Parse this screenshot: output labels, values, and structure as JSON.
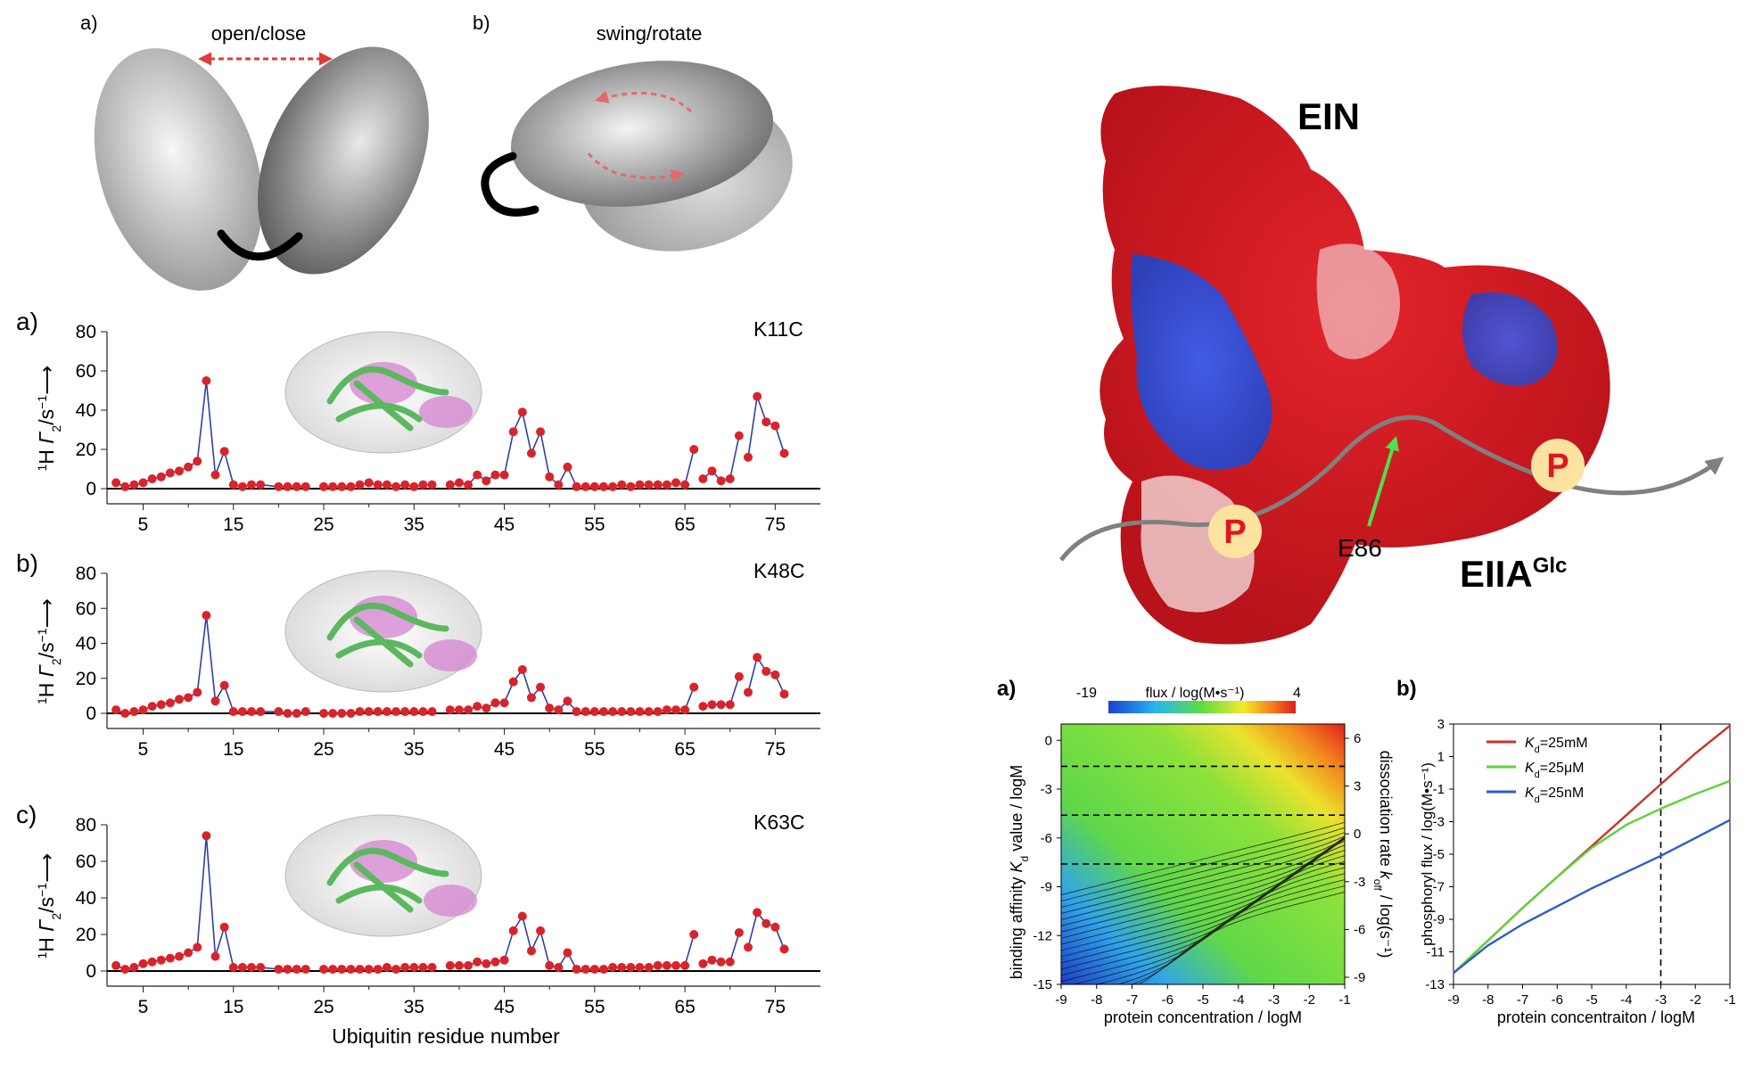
{
  "colors": {
    "marker": "#d9232a",
    "line": "#2f3fa6",
    "red_curve": "#c8332b",
    "green_curve": "#5fd23a",
    "blue_curve": "#2d5bd0",
    "protein_green": "#5bb85f",
    "protein_pink": "#d68ad2",
    "phospho_fill": "#fde3a0",
    "phospho_text": "#e2141c"
  },
  "schematic": {
    "a": {
      "panel_label": "a)",
      "caption": "open/close"
    },
    "b": {
      "panel_label": "b)",
      "caption": "swing/rotate"
    }
  },
  "structure": {
    "ein": "EIN",
    "eiia": "EIIA",
    "eiia_sup": "Glc",
    "e86": "E86",
    "phospho": "P",
    "icons": [
      "phosphoryl-transfer-arrow-icon",
      "protein-surface-icon"
    ]
  },
  "chart_data": [
    {
      "type": "scatter",
      "panel_label": "a)",
      "construct": "K11C",
      "ylabel_html": "1H Γ2/s−1",
      "ylabel": {
        "pre": "1",
        "h": "H ",
        "gamma": "Γ",
        "sub": "2",
        "unit": "/s",
        "sup": "−1",
        "arrow": "⟶"
      },
      "xlim": [
        1,
        80
      ],
      "ylim": [
        0,
        80
      ],
      "xticks": [
        5,
        15,
        25,
        35,
        45,
        55,
        65,
        75
      ],
      "yticks": [
        0,
        20,
        40,
        60,
        80
      ],
      "points": [
        [
          2,
          3
        ],
        [
          3,
          1
        ],
        [
          4,
          2
        ],
        [
          5,
          3
        ],
        [
          6,
          5
        ],
        [
          7,
          6
        ],
        [
          8,
          8
        ],
        [
          9,
          9
        ],
        [
          10,
          11
        ],
        [
          11,
          14
        ],
        [
          12,
          55
        ],
        [
          13,
          7
        ],
        [
          14,
          19
        ],
        [
          15,
          2
        ],
        [
          16,
          1
        ],
        [
          17,
          2
        ],
        [
          18,
          2
        ],
        [
          20,
          1
        ],
        [
          21,
          1
        ],
        [
          22,
          1
        ],
        [
          23,
          1
        ],
        [
          25,
          1
        ],
        [
          26,
          1
        ],
        [
          27,
          1
        ],
        [
          28,
          1
        ],
        [
          29,
          2
        ],
        [
          30,
          3
        ],
        [
          31,
          2
        ],
        [
          32,
          2
        ],
        [
          33,
          1
        ],
        [
          34,
          2
        ],
        [
          35,
          1
        ],
        [
          36,
          2
        ],
        [
          37,
          2
        ],
        [
          39,
          2
        ],
        [
          40,
          3
        ],
        [
          41,
          2
        ],
        [
          42,
          7
        ],
        [
          43,
          4
        ],
        [
          44,
          7
        ],
        [
          45,
          7
        ],
        [
          46,
          29
        ],
        [
          47,
          39
        ],
        [
          48,
          18
        ],
        [
          49,
          29
        ],
        [
          50,
          6
        ],
        [
          51,
          2
        ],
        [
          52,
          11
        ],
        [
          53,
          1
        ],
        [
          54,
          1
        ],
        [
          55,
          1
        ],
        [
          56,
          1
        ],
        [
          57,
          1
        ],
        [
          58,
          2
        ],
        [
          59,
          1
        ],
        [
          60,
          2
        ],
        [
          61,
          2
        ],
        [
          62,
          2
        ],
        [
          63,
          2
        ],
        [
          64,
          3
        ],
        [
          65,
          2
        ],
        [
          66,
          20
        ],
        [
          67,
          5
        ],
        [
          68,
          9
        ],
        [
          69,
          4
        ],
        [
          70,
          5
        ],
        [
          71,
          27
        ],
        [
          72,
          16
        ],
        [
          73,
          47
        ],
        [
          74,
          34
        ],
        [
          75,
          32
        ],
        [
          76,
          18
        ]
      ],
      "line_gaps_after": [
        23,
        37,
        53,
        66,
        71
      ]
    },
    {
      "type": "scatter",
      "panel_label": "b)",
      "construct": "K48C",
      "ylabel": {
        "pre": "1",
        "h": "H ",
        "gamma": "Γ",
        "sub": "2",
        "unit": "/s",
        "sup": "−1",
        "arrow": "⟶"
      },
      "xlim": [
        1,
        80
      ],
      "ylim": [
        0,
        80
      ],
      "xticks": [
        5,
        15,
        25,
        35,
        45,
        55,
        65,
        75
      ],
      "yticks": [
        0,
        20,
        40,
        60,
        80
      ],
      "points": [
        [
          2,
          2
        ],
        [
          3,
          0
        ],
        [
          4,
          1
        ],
        [
          5,
          2
        ],
        [
          6,
          4
        ],
        [
          7,
          5
        ],
        [
          8,
          6
        ],
        [
          9,
          8
        ],
        [
          10,
          9
        ],
        [
          11,
          12
        ],
        [
          12,
          56
        ],
        [
          13,
          7
        ],
        [
          14,
          16
        ],
        [
          15,
          1
        ],
        [
          16,
          1
        ],
        [
          17,
          1
        ],
        [
          18,
          1
        ],
        [
          20,
          1
        ],
        [
          21,
          0
        ],
        [
          22,
          0
        ],
        [
          23,
          1
        ],
        [
          25,
          0
        ],
        [
          26,
          0
        ],
        [
          27,
          0
        ],
        [
          28,
          0
        ],
        [
          29,
          1
        ],
        [
          30,
          1
        ],
        [
          31,
          1
        ],
        [
          32,
          1
        ],
        [
          33,
          1
        ],
        [
          34,
          1
        ],
        [
          35,
          1
        ],
        [
          36,
          1
        ],
        [
          37,
          1
        ],
        [
          39,
          2
        ],
        [
          40,
          2
        ],
        [
          41,
          2
        ],
        [
          42,
          4
        ],
        [
          43,
          3
        ],
        [
          44,
          6
        ],
        [
          45,
          6
        ],
        [
          46,
          18
        ],
        [
          47,
          25
        ],
        [
          48,
          9
        ],
        [
          49,
          15
        ],
        [
          50,
          3
        ],
        [
          51,
          2
        ],
        [
          52,
          7
        ],
        [
          53,
          1
        ],
        [
          54,
          1
        ],
        [
          55,
          1
        ],
        [
          56,
          1
        ],
        [
          57,
          1
        ],
        [
          58,
          1
        ],
        [
          59,
          1
        ],
        [
          60,
          1
        ],
        [
          61,
          1
        ],
        [
          62,
          1
        ],
        [
          63,
          2
        ],
        [
          64,
          2
        ],
        [
          65,
          2
        ],
        [
          66,
          15
        ],
        [
          67,
          4
        ],
        [
          68,
          5
        ],
        [
          69,
          5
        ],
        [
          70,
          5
        ],
        [
          71,
          21
        ],
        [
          72,
          12
        ],
        [
          73,
          32
        ],
        [
          74,
          24
        ],
        [
          75,
          22
        ],
        [
          76,
          11
        ]
      ],
      "line_gaps_after": [
        23,
        37,
        53,
        66,
        71
      ]
    },
    {
      "type": "scatter",
      "panel_label": "c)",
      "construct": "K63C",
      "ylabel": {
        "pre": "1",
        "h": "H ",
        "gamma": "Γ",
        "sub": "2",
        "unit": "/s",
        "sup": "−1",
        "arrow": "⟶"
      },
      "xlabel": "Ubiquitin residue number",
      "xlim": [
        1,
        80
      ],
      "ylim": [
        0,
        80
      ],
      "xticks": [
        5,
        15,
        25,
        35,
        45,
        55,
        65,
        75
      ],
      "yticks": [
        0,
        20,
        40,
        60,
        80
      ],
      "points": [
        [
          2,
          3
        ],
        [
          3,
          1
        ],
        [
          4,
          2
        ],
        [
          5,
          4
        ],
        [
          6,
          5
        ],
        [
          7,
          6
        ],
        [
          8,
          7
        ],
        [
          9,
          8
        ],
        [
          10,
          10
        ],
        [
          11,
          13
        ],
        [
          12,
          74
        ],
        [
          13,
          8
        ],
        [
          14,
          24
        ],
        [
          15,
          2
        ],
        [
          16,
          2
        ],
        [
          17,
          2
        ],
        [
          18,
          2
        ],
        [
          20,
          1
        ],
        [
          21,
          1
        ],
        [
          22,
          1
        ],
        [
          23,
          1
        ],
        [
          25,
          1
        ],
        [
          26,
          1
        ],
        [
          27,
          1
        ],
        [
          28,
          1
        ],
        [
          29,
          1
        ],
        [
          30,
          1
        ],
        [
          31,
          1
        ],
        [
          32,
          2
        ],
        [
          33,
          1
        ],
        [
          34,
          2
        ],
        [
          35,
          2
        ],
        [
          36,
          2
        ],
        [
          37,
          2
        ],
        [
          39,
          3
        ],
        [
          40,
          3
        ],
        [
          41,
          3
        ],
        [
          42,
          5
        ],
        [
          43,
          4
        ],
        [
          44,
          5
        ],
        [
          45,
          6
        ],
        [
          46,
          22
        ],
        [
          47,
          30
        ],
        [
          48,
          11
        ],
        [
          49,
          22
        ],
        [
          50,
          3
        ],
        [
          51,
          2
        ],
        [
          52,
          10
        ],
        [
          53,
          1
        ],
        [
          54,
          1
        ],
        [
          55,
          1
        ],
        [
          56,
          1
        ],
        [
          57,
          2
        ],
        [
          58,
          2
        ],
        [
          59,
          2
        ],
        [
          60,
          2
        ],
        [
          61,
          2
        ],
        [
          62,
          3
        ],
        [
          63,
          3
        ],
        [
          64,
          3
        ],
        [
          65,
          3
        ],
        [
          66,
          20
        ],
        [
          67,
          4
        ],
        [
          68,
          6
        ],
        [
          69,
          5
        ],
        [
          70,
          5
        ],
        [
          71,
          21
        ],
        [
          72,
          13
        ],
        [
          73,
          32
        ],
        [
          74,
          26
        ],
        [
          75,
          24
        ],
        [
          76,
          12
        ]
      ],
      "line_gaps_after": [
        23,
        37,
        53,
        66,
        71
      ]
    },
    {
      "type": "heatmap",
      "panel_label": "a)",
      "colorbar_label": "flux / log(M•s⁻¹)",
      "colorbar_min": "-19",
      "colorbar_max": "4",
      "xlabel": "protein concentration / logM",
      "ylabel_html": "binding affinity Kd value / logM",
      "ylabel": {
        "pre": "binding affinity ",
        "k": "K",
        "sub": "d",
        "post": " value / logM"
      },
      "y2label": {
        "pre": "dissociation rate ",
        "k": "k",
        "sub": "off",
        "post": " / log(s⁻¹)"
      },
      "xlim": [
        -9,
        -1
      ],
      "ylim": [
        -15,
        1
      ],
      "xticks": [
        "-9",
        "-8",
        "-7",
        "-6",
        "-5",
        "-4",
        "-3",
        "-2",
        "-1"
      ],
      "yticks": [
        "0",
        "-3",
        "-6",
        "-9",
        "-12",
        "-15"
      ],
      "y2ticks": [
        "6",
        "3",
        "0",
        "-3",
        "-6",
        "-9"
      ],
      "dashed_y": [
        -1.6,
        -4.6,
        -7.6
      ]
    },
    {
      "type": "line",
      "panel_label": "b)",
      "xlabel": "protein concentraiton / logM",
      "ylabel": "phosphoryl flux  / log(M•s⁻¹)",
      "xlim": [
        -9,
        -1
      ],
      "ylim": [
        -13,
        3
      ],
      "xticks": [
        "-9",
        "-8",
        "-7",
        "-6",
        "-5",
        "-4",
        "-3",
        "-2",
        "-1"
      ],
      "yticks": [
        "3",
        "1",
        "-1",
        "-3",
        "-5",
        "-7",
        "-9",
        "-11",
        "-13"
      ],
      "vline_x": -3,
      "series": [
        {
          "name": "Kd=25mM",
          "k": "K",
          "sub": "d",
          "value": "=25mM",
          "color": "#c8332b",
          "x": [
            -9,
            -8,
            -7,
            -6,
            -5,
            -4,
            -3,
            -2,
            -1
          ],
          "y": [
            -12.3,
            -10.3,
            -8.3,
            -6.4,
            -4.5,
            -2.6,
            -0.7,
            1.2,
            2.9
          ]
        },
        {
          "name": "Kd=25μM",
          "k": "K",
          "sub": "d",
          "value": "=25μM",
          "color": "#5fd23a",
          "x": [
            -9,
            -8,
            -7,
            -6,
            -5,
            -4,
            -3,
            -2,
            -1
          ],
          "y": [
            -12.3,
            -10.3,
            -8.3,
            -6.4,
            -4.6,
            -3.2,
            -2.2,
            -1.3,
            -0.5
          ]
        },
        {
          "name": "Kd=25nM",
          "k": "K",
          "sub": "d",
          "value": "=25nM",
          "color": "#2d5bd0",
          "x": [
            -9,
            -8,
            -7,
            -6,
            -5,
            -4,
            -3,
            -2,
            -1
          ],
          "y": [
            -12.3,
            -10.6,
            -9.3,
            -8.2,
            -7.1,
            -6.1,
            -5.1,
            -4.0,
            -2.9
          ]
        }
      ]
    }
  ]
}
